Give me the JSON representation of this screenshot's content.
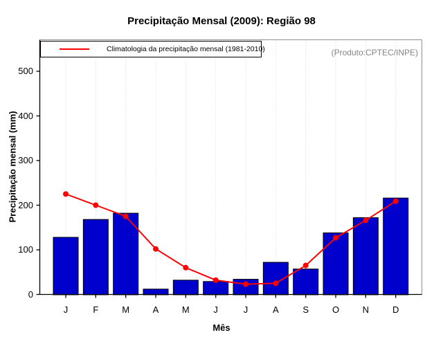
{
  "annotations": {
    "product": "(Produto:CPTEC/INPE)"
  },
  "legend": {
    "position": "top-left",
    "items": [
      {
        "label": "Climatologia da precipitação mensal (1981-2010)",
        "color": "#ff0000",
        "type": "line"
      }
    ]
  },
  "chart_data": {
    "type": "bar",
    "title": "Precipitação Mensal (2009): Região 98",
    "xlabel": "Mês",
    "ylabel": "Precipitação mensal (mm)",
    "categories": [
      "J",
      "F",
      "M",
      "A",
      "M",
      "J",
      "J",
      "A",
      "S",
      "O",
      "N",
      "D"
    ],
    "series": [
      {
        "name": "Precipitação mensal 2009",
        "type": "bar",
        "color": "#0000cc",
        "values": [
          128,
          168,
          182,
          12,
          32,
          29,
          34,
          72,
          57,
          138,
          172,
          216
        ]
      },
      {
        "name": "Climatologia da precipitação mensal (1981-2010)",
        "type": "line",
        "color": "#ff0000",
        "values": [
          225,
          200,
          175,
          102,
          60,
          32,
          23,
          25,
          65,
          127,
          166,
          209
        ]
      }
    ],
    "ylim": [
      0,
      500
    ],
    "yticks": [
      0,
      100,
      200,
      300,
      400,
      500
    ],
    "grid": "vertical-dotted",
    "legend_position": "top-left"
  }
}
